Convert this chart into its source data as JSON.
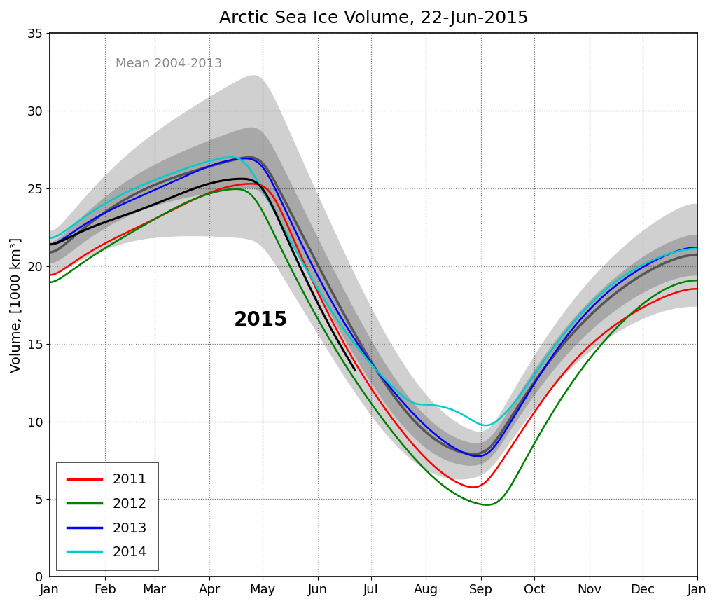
{
  "title": "Arctic Sea Ice Volume, 22-Jun-2015",
  "ylabel": "Volume, [1000 km³]",
  "ylim": [
    0,
    35
  ],
  "yticks": [
    0,
    5,
    10,
    15,
    20,
    25,
    30,
    35
  ],
  "mean_label": "Mean 2004-2013",
  "annotation_2015": "2015",
  "title_fontsize": 18,
  "label_fontsize": 14,
  "tick_fontsize": 13,
  "legend_fontsize": 14,
  "line_colors": {
    "2011": "#ff0000",
    "2012": "#008000",
    "2013": "#0000ff",
    "2014": "#00cccc",
    "mean": "#555555",
    "shade_outer": "#d0d0d0",
    "shade_inner": "#a8a8a8"
  },
  "background_color": "#ffffff",
  "month_labels": [
    "Jan",
    "Feb",
    "Mar",
    "Apr",
    "May",
    "Jun",
    "Jul",
    "Aug",
    "Sep",
    "Oct",
    "Nov",
    "Dec",
    "Jan"
  ],
  "month_tick_days": [
    1,
    32,
    60,
    91,
    121,
    152,
    182,
    213,
    244,
    274,
    305,
    335,
    366
  ]
}
